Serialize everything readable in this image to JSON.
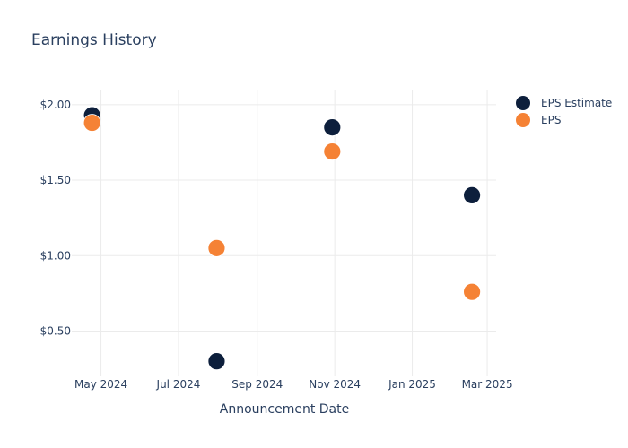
{
  "chart_data": {
    "type": "scatter",
    "title": "Earnings History",
    "xlabel": "Announcement Date",
    "ylabel": "",
    "x_ticks": [
      {
        "date": "2024-05-01",
        "label": "May 2024"
      },
      {
        "date": "2024-07-01",
        "label": "Jul 2024"
      },
      {
        "date": "2024-09-01",
        "label": "Sep 2024"
      },
      {
        "date": "2024-11-01",
        "label": "Nov 2024"
      },
      {
        "date": "2025-01-01",
        "label": "Jan 2025"
      },
      {
        "date": "2025-03-01",
        "label": "Mar 2025"
      }
    ],
    "y_ticks": [
      {
        "value": 0.5,
        "label": "$0.50"
      },
      {
        "value": 1.0,
        "label": "$1.00"
      },
      {
        "value": 1.5,
        "label": "$1.50"
      },
      {
        "value": 2.0,
        "label": "$2.00"
      }
    ],
    "xlim": [
      "2024-04-08",
      "2025-03-08"
    ],
    "ylim": [
      0.2,
      2.1
    ],
    "grid": true,
    "legend_position": "top-right",
    "series": [
      {
        "name": "EPS Estimate",
        "color": "#0d1f3c",
        "x": [
          "2024-04-24",
          "2024-07-31",
          "2024-10-30",
          "2025-02-17"
        ],
        "y": [
          1.93,
          0.3,
          1.85,
          1.4
        ]
      },
      {
        "name": "EPS",
        "color": "#f58235",
        "x": [
          "2024-04-24",
          "2024-07-31",
          "2024-10-30",
          "2025-02-17"
        ],
        "y": [
          1.88,
          1.05,
          1.69,
          0.76
        ]
      }
    ]
  }
}
